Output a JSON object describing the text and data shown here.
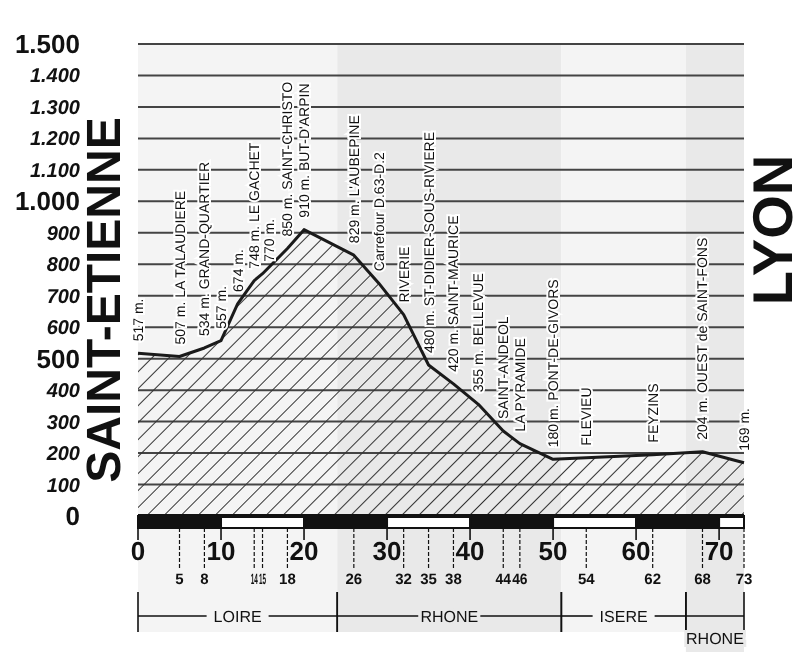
{
  "chart_data": {
    "type": "area",
    "title": "SAINT-ETIENNE",
    "subtitle": "LYON",
    "x": [
      0,
      5,
      8,
      10,
      12,
      14,
      15,
      18,
      20,
      26,
      29,
      32,
      35,
      38,
      41,
      44,
      46,
      50,
      54,
      62,
      68,
      73
    ],
    "series": [
      {
        "color": "#1a1a1a",
        "values": [
          517,
          507,
          534,
          557,
          674,
          748,
          770,
          850,
          910,
          829,
          740,
          640,
          480,
          420,
          355,
          270,
          230,
          180,
          185,
          195,
          204,
          169
        ]
      }
    ],
    "xlim": [
      0,
      73
    ],
    "ylim": [
      0,
      1500
    ],
    "xticks": [
      0,
      10,
      20,
      30,
      40,
      50,
      60,
      70
    ],
    "x2lim": [
      0,
      73
    ],
    "x2ticks": [
      5,
      8,
      14,
      15,
      18,
      26,
      32,
      35,
      38,
      44,
      46,
      54,
      62,
      68,
      73
    ],
    "yticks": [
      0,
      100,
      200,
      300,
      400,
      500,
      600,
      700,
      800,
      900,
      {
        "value": 1000,
        "label": "1.000"
      },
      {
        "value": 1100,
        "label": "1.100"
      },
      {
        "value": 1200,
        "label": "1.200"
      },
      {
        "value": 1300,
        "label": "1.300"
      },
      {
        "value": 1400,
        "label": "1.400"
      },
      {
        "value": 1500,
        "label": "1.500"
      }
    ],
    "grid": "y",
    "annotations": [
      {
        "text": "517 m.",
        "x": 0,
        "y": 517
      },
      {
        "text": "507 m. LA TALAUDIERE",
        "x": 5,
        "y": 507
      },
      {
        "text": "534 m. GRAND-QUARTIER",
        "x": 8,
        "y": 534
      },
      {
        "text": "557 m.",
        "x": 10,
        "y": 557
      },
      {
        "text": "674 m.",
        "x": 12,
        "y": 674
      },
      {
        "text": "748 m. LE GACHET",
        "x": 14,
        "y": 748
      },
      {
        "text": "770 m.",
        "x": 15,
        "y": 770
      },
      {
        "text": "850 m. SAINT-CHRISTO",
        "x": 18,
        "y": 850
      },
      {
        "text": "910 m. BUT-D'ARPIN",
        "x": 20,
        "y": 910
      },
      {
        "text": "829 m. L'AUBEPINE",
        "x": 26,
        "y": 829
      },
      {
        "text": "Carrefour D.63-D.2",
        "x": 29,
        "y": 740
      },
      {
        "text": "RIVERIE",
        "x": 32,
        "y": 640
      },
      {
        "text": "480 m. ST-DIDIER-SOUS-RIVIERE",
        "x": 35,
        "y": 480
      },
      {
        "text": "420 m. SAINT-MAURICE",
        "x": 38,
        "y": 420
      },
      {
        "text": "355 m. BELLEVUE",
        "x": 41,
        "y": 355
      },
      {
        "text": "SAINT-ANDEOL",
        "x": 44,
        "y": 270
      },
      {
        "text": "LA PYRAMIDE",
        "x": 46,
        "y": 230
      },
      {
        "text": "180 m. PONT-DE-GIVORS",
        "x": 50,
        "y": 180
      },
      {
        "text": "FLEVIEU",
        "x": 54,
        "y": 185
      },
      {
        "text": "FEYZINS",
        "x": 62,
        "y": 195
      },
      {
        "text": "204 m. OUEST de SAINT-FONS",
        "x": 68,
        "y": 204
      },
      {
        "text": "169 m.",
        "x": 73,
        "y": 169
      }
    ],
    "bands": [
      {
        "axis": "x",
        "from": 0,
        "to": 24,
        "label": "LOIRE",
        "color": "#f4f4f4"
      },
      {
        "axis": "x",
        "from": 24,
        "to": 51,
        "label": "RHONE",
        "color": "#e9e9e9"
      },
      {
        "axis": "x",
        "from": 51,
        "to": 66,
        "label": "ISERE",
        "color": "#f4f4f4"
      },
      {
        "axis": "x",
        "from": 66,
        "to": 73,
        "label": "RHONE",
        "color": "#e9e9e9"
      }
    ]
  }
}
